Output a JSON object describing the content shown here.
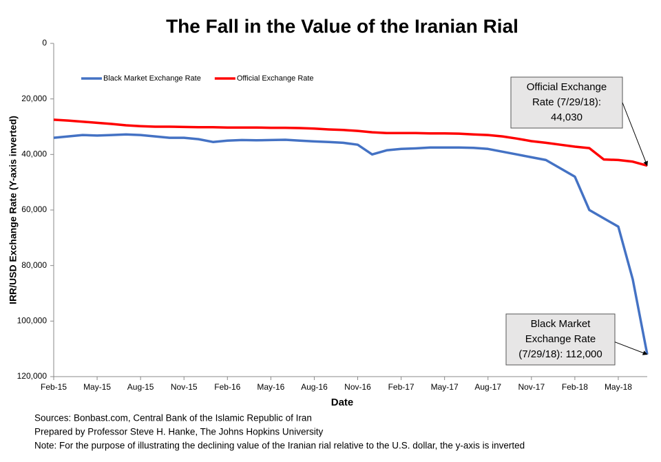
{
  "chart_data": {
    "type": "line",
    "title": "The Fall in the Value of the Iranian Rial",
    "x_label": "Date",
    "y_label": "IRR/USD Exchange Rate (Y-axis inverted)",
    "y_inverted": true,
    "grid": false,
    "legend": "top-left",
    "x": [
      "2015-02",
      "2015-03",
      "2015-04",
      "2015-05",
      "2015-06",
      "2015-07",
      "2015-08",
      "2015-09",
      "2015-10",
      "2015-11",
      "2015-12",
      "2016-01",
      "2016-02",
      "2016-03",
      "2016-04",
      "2016-05",
      "2016-06",
      "2016-07",
      "2016-08",
      "2016-09",
      "2016-10",
      "2016-11",
      "2016-12",
      "2017-01",
      "2017-02",
      "2017-03",
      "2017-04",
      "2017-05",
      "2017-06",
      "2017-07",
      "2017-08",
      "2017-09",
      "2017-10",
      "2017-11",
      "2017-12",
      "2018-01",
      "2018-02",
      "2018-03",
      "2018-04",
      "2018-05",
      "2018-06",
      "2018-07"
    ],
    "series": [
      {
        "name": "Black Market Exchange Rate",
        "color": "#4472c4",
        "values": [
          34000,
          33500,
          33000,
          33200,
          33000,
          32800,
          33000,
          33500,
          34000,
          34000,
          34500,
          35500,
          35000,
          34800,
          34900,
          34800,
          34700,
          35000,
          35300,
          35500,
          35800,
          36500,
          40000,
          38500,
          38000,
          37800,
          37500,
          37500,
          37500,
          37600,
          38000,
          39000,
          40000,
          41000,
          42000,
          45000,
          48000,
          60000,
          63000,
          66000,
          85000,
          112000
        ]
      },
      {
        "name": "Official Exchange Rate",
        "color": "#ff0000",
        "values": [
          27500,
          27800,
          28200,
          28600,
          29000,
          29500,
          29800,
          30000,
          30000,
          30100,
          30200,
          30200,
          30300,
          30300,
          30300,
          30400,
          30400,
          30500,
          30700,
          31000,
          31200,
          31500,
          32000,
          32300,
          32300,
          32300,
          32400,
          32400,
          32500,
          32800,
          33000,
          33500,
          34300,
          35200,
          35800,
          36500,
          37200,
          37700,
          41800,
          42000,
          42600,
          44030
        ]
      }
    ],
    "xlim": [
      "2015-02",
      "2018-07"
    ],
    "xticks": [
      {
        "value": "2015-02",
        "label": "Feb-15"
      },
      {
        "value": "2015-05",
        "label": "May-15"
      },
      {
        "value": "2015-08",
        "label": "Aug-15"
      },
      {
        "value": "2015-11",
        "label": "Nov-15"
      },
      {
        "value": "2016-02",
        "label": "Feb-16"
      },
      {
        "value": "2016-05",
        "label": "May-16"
      },
      {
        "value": "2016-08",
        "label": "Aug-16"
      },
      {
        "value": "2016-11",
        "label": "Nov-16"
      },
      {
        "value": "2017-02",
        "label": "Feb-17"
      },
      {
        "value": "2017-05",
        "label": "May-17"
      },
      {
        "value": "2017-08",
        "label": "Aug-17"
      },
      {
        "value": "2017-11",
        "label": "Nov-17"
      },
      {
        "value": "2018-02",
        "label": "Feb-18"
      },
      {
        "value": "2018-05",
        "label": "May-18"
      }
    ],
    "ylim": [
      0,
      120000
    ],
    "yticks": [
      0,
      {
        "value": 20000,
        "label": "20,000"
      },
      {
        "value": 40000,
        "label": "40,000"
      },
      {
        "value": 60000,
        "label": "60,000"
      },
      {
        "value": 80000,
        "label": "80,000"
      },
      {
        "value": 100000,
        "label": "100,000"
      },
      {
        "value": 120000,
        "label": "120,000"
      }
    ],
    "annotations": [
      {
        "series": 1,
        "lines": [
          "Official Exchange",
          "Rate (7/29/18):",
          "44,030"
        ]
      },
      {
        "series": 0,
        "lines": [
          "Black Market",
          "Exchange Rate",
          "(7/29/18): 112,000"
        ]
      }
    ],
    "notes": [
      "Sources: Bonbast.com, Central Bank of the Islamic Republic of Iran",
      "Prepared by Professor Steve H. Hanke, The Johns Hopkins University",
      "Note: For the purpose of illustrating the declining value of the Iranian rial relative to the U.S. dollar, the y-axis is inverted"
    ]
  }
}
